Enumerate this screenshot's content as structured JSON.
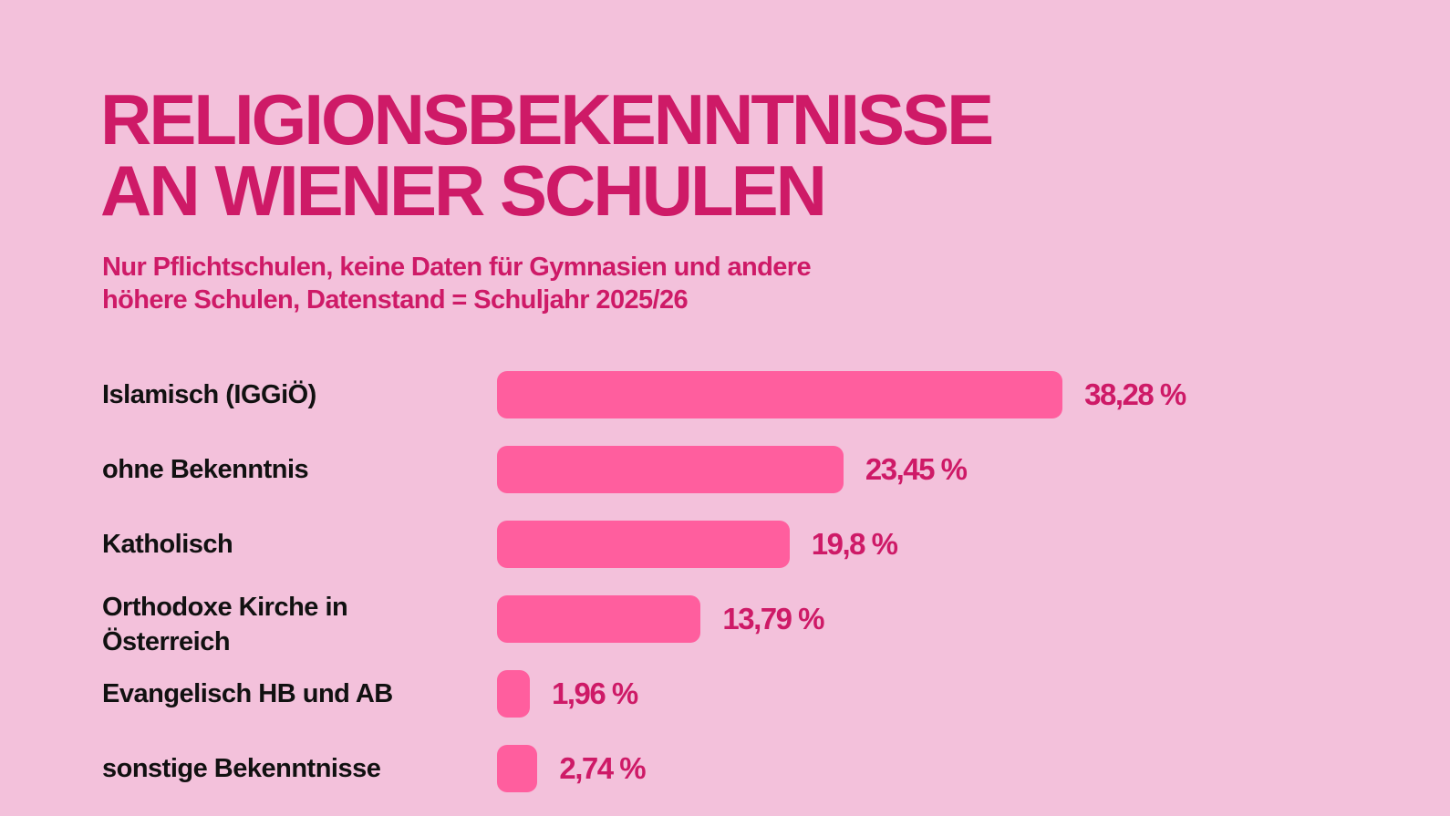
{
  "colors": {
    "background": "#F3C1DB",
    "accent": "#CE1A67",
    "bar": "#FF5E9E",
    "label": "#111111"
  },
  "chart_data": {
    "type": "bar",
    "orientation": "horizontal",
    "title_lines": [
      "RELIGIONSBEKENNTNISSE",
      "AN WIENER SCHULEN"
    ],
    "subtitle_lines": [
      "Nur Pflichtschulen, keine Daten für Gymnasien und andere",
      "höhere Schulen, Datenstand = Schuljahr 2025/26"
    ],
    "categories": [
      "Islamisch (IGGiÖ)",
      "ohne Bekenntnis",
      "Katholisch",
      "Orthodoxe Kirche in Österreich",
      "Evangelisch HB und AB",
      "sonstige Bekenntnisse"
    ],
    "values": [
      38.28,
      23.45,
      19.8,
      13.79,
      1.96,
      2.74
    ],
    "value_labels": [
      "38,28 %",
      "23,45 %",
      "19,8 %",
      "13,79 %",
      "1,96 %",
      "2,74 %"
    ],
    "xlabel": "",
    "ylabel": "",
    "grid": false,
    "legend": "none"
  }
}
